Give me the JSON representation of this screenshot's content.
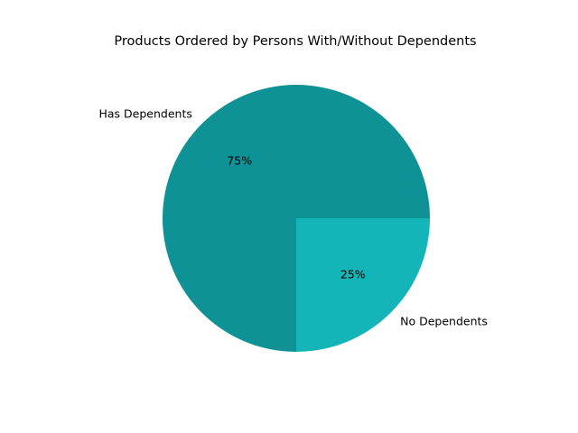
{
  "chart_data": {
    "type": "pie",
    "title": "Products Ordered by Persons With/Without Dependents",
    "categories": [
      "Has Dependents",
      "No Dependents"
    ],
    "values": [
      75,
      25
    ],
    "percent_labels": [
      "75%",
      "25%"
    ],
    "colors": [
      "#0e9295",
      "#13b5b8"
    ],
    "start_angle_deg": 0,
    "direction": "counterclockwise",
    "legend": "none",
    "grid": false
  }
}
